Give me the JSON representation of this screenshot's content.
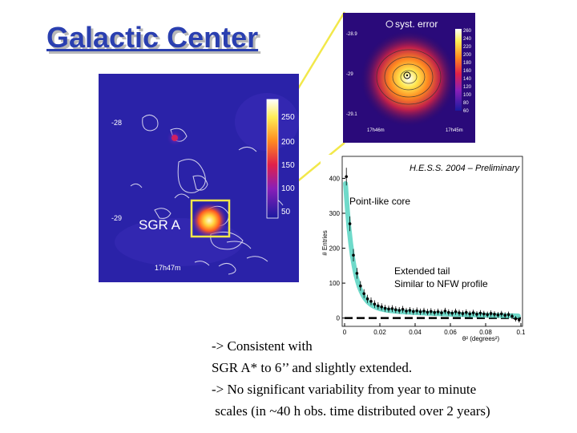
{
  "title": "Galactic Center",
  "skymap": {
    "dec_ticks": [
      "-28",
      "-29"
    ],
    "ra_tick": "17h47m",
    "colorbar_ticks": [
      "250",
      "200",
      "150",
      "100",
      "50"
    ],
    "source_label": "SGR A"
  },
  "zoom": {
    "legend": "syst. error",
    "dec_ticks": [
      "-28.9",
      "-29",
      "-29.1"
    ],
    "ra_ticks": [
      "17h46m",
      "17h45m"
    ],
    "colorbar_ticks": [
      "260",
      "240",
      "220",
      "200",
      "180",
      "160",
      "140",
      "120",
      "100",
      "80",
      "60"
    ]
  },
  "hist": {
    "title": "H.E.S.S. 2004 – Preliminary",
    "ylabel": "# Entries",
    "xlabel": "θ² (degrees²)",
    "y_ticks": [
      "400",
      "300",
      "200",
      "100",
      "0"
    ],
    "x_ticks": [
      "0",
      "0.02",
      "0.04",
      "0.06",
      "0.08",
      "0.1"
    ],
    "annotation_core": "Point-like core",
    "annotation_tail_1": "Extended tail",
    "annotation_tail_2": "Similar to NFW profile"
  },
  "chart_data": {
    "type": "scatter",
    "title": "H.E.S.S. 2004 – Preliminary",
    "xlabel": "θ² (degrees²)",
    "ylabel": "# Entries",
    "xlim": [
      0,
      0.1
    ],
    "ylim": [
      -10,
      440
    ],
    "x": [
      0.001,
      0.003,
      0.005,
      0.007,
      0.009,
      0.011,
      0.013,
      0.015,
      0.017,
      0.019,
      0.021,
      0.023,
      0.025,
      0.027,
      0.029,
      0.031,
      0.033,
      0.035,
      0.037,
      0.039,
      0.041,
      0.043,
      0.045,
      0.047,
      0.049,
      0.051,
      0.053,
      0.055,
      0.057,
      0.059,
      0.061,
      0.063,
      0.065,
      0.067,
      0.069,
      0.071,
      0.073,
      0.075,
      0.077,
      0.079,
      0.081,
      0.083,
      0.085,
      0.087,
      0.089,
      0.091,
      0.093,
      0.095,
      0.097,
      0.099
    ],
    "y": [
      405,
      270,
      180,
      128,
      92,
      70,
      55,
      48,
      40,
      35,
      32,
      28,
      26,
      27,
      24,
      22,
      25,
      20,
      22,
      19,
      21,
      18,
      20,
      17,
      19,
      16,
      18,
      15,
      20,
      16,
      14,
      18,
      15,
      13,
      16,
      12,
      15,
      11,
      14,
      12,
      10,
      13,
      11,
      9,
      12,
      8,
      10,
      5,
      -2,
      -5
    ],
    "fit": {
      "name": "fit",
      "color": "#5fd6c4"
    },
    "background": {
      "value": 0,
      "color": "#000000",
      "style": "dashed"
    }
  }
}
